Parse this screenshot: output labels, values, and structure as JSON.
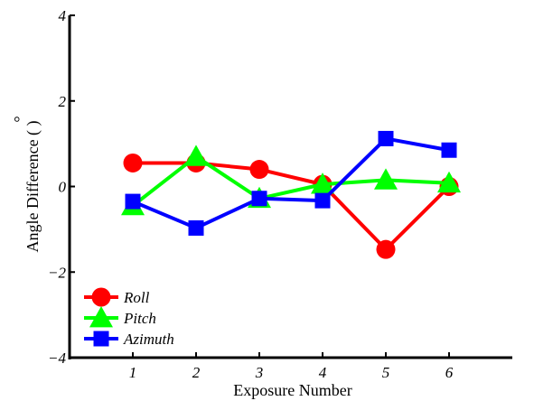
{
  "chart_data": {
    "type": "line",
    "xlabel": "Exposure Number",
    "ylabel": "Angle Difference ( )",
    "ylabel_degree_mark": "°",
    "x": [
      1,
      2,
      3,
      4,
      5,
      6
    ],
    "x_ticks": [
      1,
      2,
      3,
      4,
      5,
      6
    ],
    "x_tick_labels": [
      "1",
      "2",
      "3",
      "4",
      "5",
      "6"
    ],
    "xlim": [
      0,
      7
    ],
    "ylim": [
      -4,
      4
    ],
    "y_ticks": [
      -4,
      -2,
      0,
      2,
      4
    ],
    "y_tick_labels": [
      "−4",
      "−2",
      "0",
      "2",
      "4"
    ],
    "grid": false,
    "legend_position": "bottom-left",
    "series": [
      {
        "name": "Roll",
        "color": "#ff0000",
        "marker": "circle",
        "values": [
          0.55,
          0.55,
          0.4,
          0.05,
          -1.47,
          0.0
        ]
      },
      {
        "name": "Pitch",
        "color": "#00ff00",
        "marker": "triangle",
        "values": [
          -0.45,
          0.7,
          -0.28,
          0.05,
          0.15,
          0.08
        ]
      },
      {
        "name": "Azimuth",
        "color": "#0000ff",
        "marker": "square",
        "values": [
          -0.35,
          -0.97,
          -0.28,
          -0.33,
          1.12,
          0.85
        ]
      }
    ]
  }
}
